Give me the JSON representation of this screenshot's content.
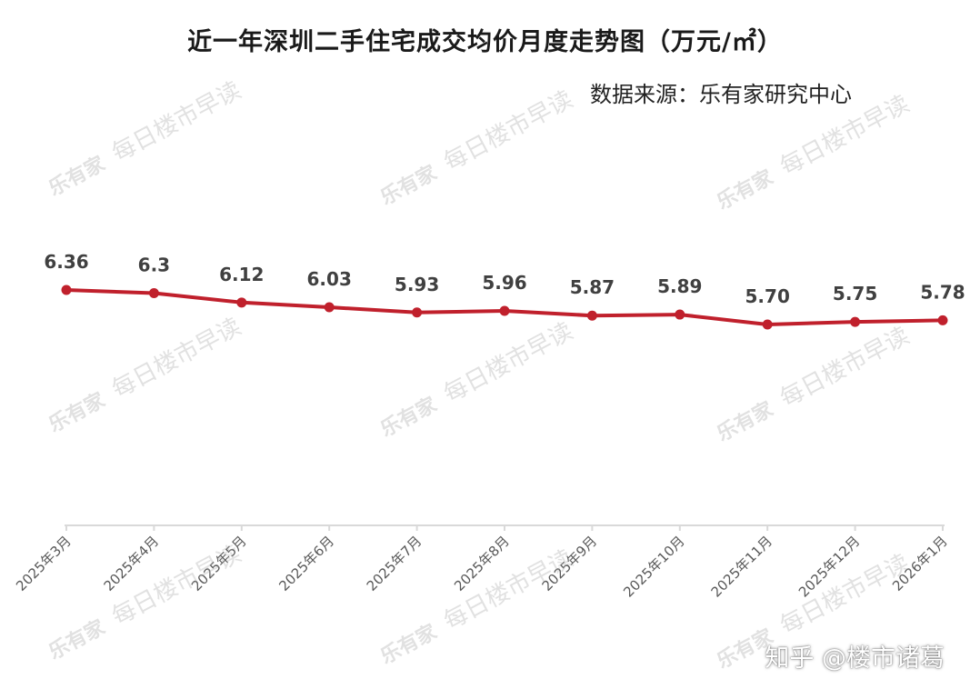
{
  "title": "近一年深圳二手住宅成交均价月度走势图（万元/㎡）",
  "source": "数据来源：乐有家研究中心",
  "watermark": {
    "logo": "乐有家",
    "text": "每日楼市早读"
  },
  "corner_credit": "知乎 @楼市诸葛",
  "colors": {
    "line": "#c0202c",
    "label": "#404040",
    "axis": "#d9d9d9",
    "tick_label": "#595959"
  },
  "chart_data": {
    "type": "line",
    "title": "近一年深圳二手住宅成交均价月度走势图（万元/㎡）",
    "categories": [
      "2025年3月",
      "2025年4月",
      "2025年5月",
      "2025年6月",
      "2025年7月",
      "2025年8月",
      "2025年9月",
      "2025年10月",
      "2025年11月",
      "2025年12月",
      "2026年1月"
    ],
    "values": [
      6.36,
      6.3,
      6.12,
      6.03,
      5.93,
      5.96,
      5.87,
      5.89,
      5.7,
      5.75,
      5.78
    ],
    "value_labels": [
      "6.36",
      "6.3",
      "6.12",
      "6.03",
      "5.93",
      "5.96",
      "5.87",
      "5.89",
      "5.70",
      "5.75",
      "5.78"
    ],
    "xlabel": "",
    "ylabel": "",
    "grid": false,
    "legend": "none",
    "y_axis_visible": false
  }
}
